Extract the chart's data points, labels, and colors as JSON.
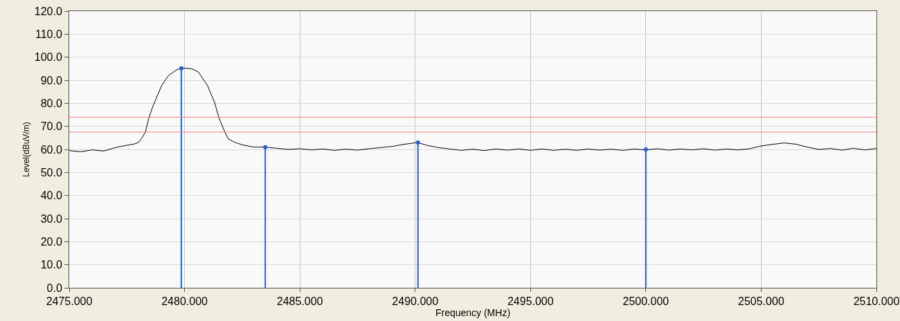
{
  "chart_data": {
    "type": "line",
    "xlabel": "Frequency (MHz)",
    "ylabel": "Level(dBuV/m)",
    "xlim": [
      2475,
      2510
    ],
    "ylim": [
      0,
      120
    ],
    "xticks": [
      {
        "value": 2475,
        "label": "2475.000"
      },
      {
        "value": 2480,
        "label": "2480.000"
      },
      {
        "value": 2485,
        "label": "2485.000"
      },
      {
        "value": 2490,
        "label": "2490.000"
      },
      {
        "value": 2495,
        "label": "2495.000"
      },
      {
        "value": 2500,
        "label": "2500.000"
      },
      {
        "value": 2505,
        "label": "2505.000"
      },
      {
        "value": 2510,
        "label": "2510.000"
      }
    ],
    "yticks": [
      {
        "value": 0,
        "label": "0.0"
      },
      {
        "value": 10,
        "label": "10.0"
      },
      {
        "value": 20,
        "label": "20.0"
      },
      {
        "value": 30,
        "label": "30.0"
      },
      {
        "value": 40,
        "label": "40.0"
      },
      {
        "value": 50,
        "label": "50.0"
      },
      {
        "value": 60,
        "label": "60.0"
      },
      {
        "value": 70,
        "label": "70.0"
      },
      {
        "value": 80,
        "label": "80.0"
      },
      {
        "value": 90,
        "label": "90.0"
      },
      {
        "value": 100,
        "label": "100.0"
      },
      {
        "value": 110,
        "label": "110.0"
      },
      {
        "value": 120,
        "label": "120.0"
      }
    ],
    "grid": true,
    "ref_lines": [
      {
        "axis": "y",
        "value": 74,
        "color": "#f08080"
      },
      {
        "axis": "y",
        "value": 67.5,
        "color": "#f08080"
      }
    ],
    "series": [
      {
        "color": "#000000",
        "x": [
          2475,
          2475.5,
          2476,
          2476.5,
          2477,
          2477.5,
          2477.8,
          2478,
          2478.15,
          2478.3,
          2478.45,
          2478.6,
          2478.75,
          2479,
          2479.3,
          2479.65,
          2479.86,
          2480.1,
          2480.3,
          2480.6,
          2481,
          2481.3,
          2481.5,
          2481.75,
          2481.9,
          2482.2,
          2482.5,
          2483,
          2483.5,
          2484,
          2484.5,
          2485,
          2485.5,
          2486,
          2486.5,
          2487,
          2487.5,
          2488,
          2488.5,
          2489,
          2489.5,
          2490.1,
          2490.5,
          2491,
          2491.5,
          2492,
          2492.5,
          2493,
          2493.5,
          2494,
          2494.5,
          2495,
          2495.5,
          2496,
          2496.5,
          2497,
          2497.5,
          2498,
          2498.5,
          2499,
          2499.5,
          2500,
          2500.5,
          2501,
          2501.5,
          2502,
          2502.5,
          2503,
          2503.5,
          2504,
          2504.5,
          2505,
          2505.5,
          2506,
          2506.5,
          2507,
          2507.5,
          2508,
          2508.5,
          2509,
          2509.5,
          2510
        ],
        "values": [
          59.5,
          59,
          59.8,
          59.3,
          60.8,
          61.8,
          62.3,
          63,
          65,
          67.5,
          73.5,
          78,
          81.6,
          87.6,
          92,
          94.5,
          95.2,
          95.2,
          95,
          93.6,
          87.6,
          80.4,
          73.5,
          67.5,
          64.5,
          63,
          62,
          61,
          61,
          60.5,
          60,
          60.3,
          59.8,
          60.2,
          59.6,
          60.1,
          59.7,
          60.3,
          60.8,
          61.3,
          62.2,
          63,
          61.8,
          60.8,
          60.2,
          59.6,
          60.1,
          59.5,
          60.2,
          59.7,
          60.2,
          59.6,
          60.2,
          59.6,
          60.1,
          59.6,
          60.2,
          59.7,
          60.1,
          59.6,
          60.2,
          59.8,
          60.3,
          59.7,
          60.2,
          59.8,
          60.3,
          59.7,
          60.2,
          59.8,
          60.3,
          61.5,
          62.2,
          62.8,
          62.3,
          61,
          60,
          60.4,
          59.7,
          60.5,
          59.8,
          60.4
        ]
      },
      {
        "type": "lollipop",
        "color": "#1f5fe0",
        "marker": "circle",
        "x": [
          2479.86,
          2483.5,
          2490.12,
          2500
        ],
        "values": [
          95.2,
          61,
          63,
          60
        ]
      }
    ]
  }
}
